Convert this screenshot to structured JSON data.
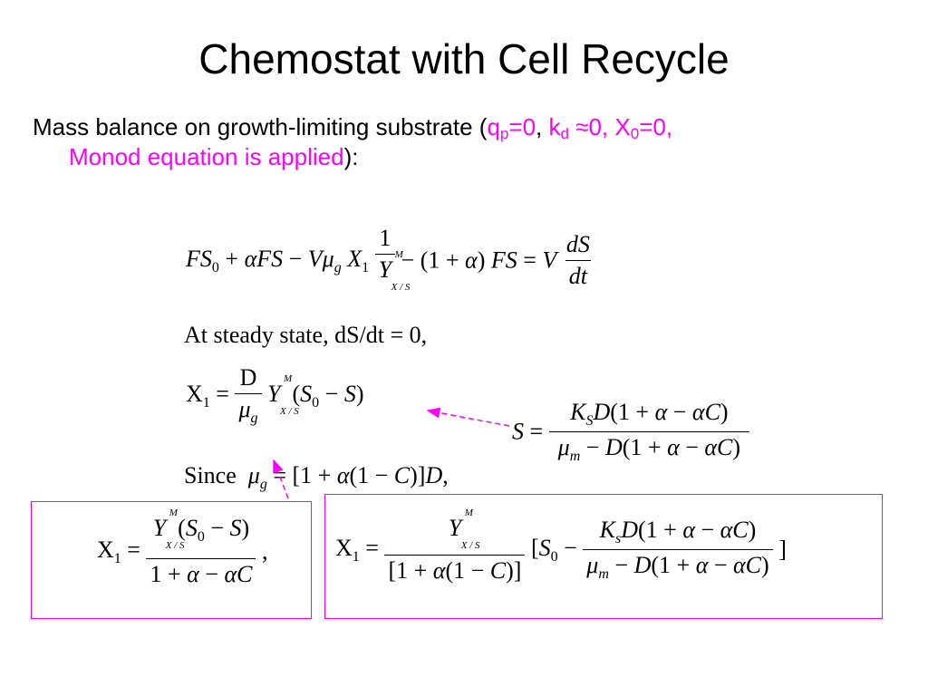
{
  "slide": {
    "title": "Chemostat with Cell Recycle",
    "bullet": {
      "prefix": "Mass balance on growth-limiting substrate (",
      "q": "q",
      "q_sub": "p",
      "q_val": "=0",
      "comma1": ", ",
      "k": "k",
      "k_sub": "d",
      "k_val": " ≈0, X",
      "x_sub": "0",
      "x_val": "=0,",
      "line2_pink": "Monod equation is applied",
      "suffix": "):"
    },
    "steady_state_text": "At steady state, dS/dt = 0,",
    "since_text": "Since",
    "colors": {
      "accent": "#ff00ff",
      "text": "#000000"
    }
  }
}
